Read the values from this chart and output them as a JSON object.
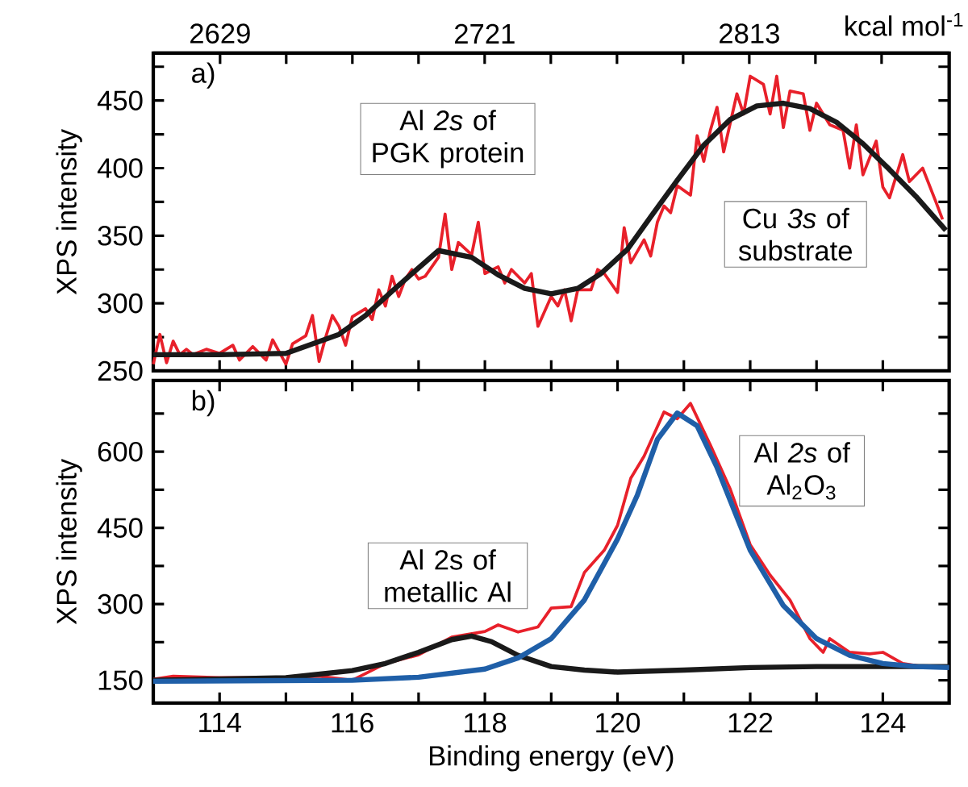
{
  "chart_data": [
    {
      "type": "line",
      "ylabel": "XPS intensity",
      "x2label": "kcal mol$^{-1}$",
      "xlim": [
        113,
        125
      ],
      "ylim": [
        250,
        485
      ],
      "x2lim": [
        2605.78,
        2882.5
      ],
      "xticks": [
        {
          "value": 114,
          "label": null
        },
        {
          "value": 115,
          "label": null
        },
        {
          "value": 116,
          "label": null
        },
        {
          "value": 117,
          "label": null
        },
        {
          "value": 118,
          "label": null
        },
        {
          "value": 119,
          "label": null
        },
        {
          "value": 120,
          "label": null
        },
        {
          "value": 121,
          "label": null
        },
        {
          "value": 122,
          "label": null
        },
        {
          "value": 123,
          "label": null
        },
        {
          "value": 124,
          "label": null
        }
      ],
      "x2ticks": [
        2629,
        {
          "value": 2652,
          "label": null
        },
        {
          "value": 2675,
          "label": null
        },
        {
          "value": 2698,
          "label": null
        },
        2721,
        {
          "value": 2744,
          "label": null
        },
        {
          "value": 2767,
          "label": null
        },
        {
          "value": 2790,
          "label": null
        },
        2813,
        {
          "value": 2836,
          "label": null
        },
        {
          "value": 2859,
          "label": null
        }
      ],
      "yticks": [
        250,
        {
          "value": 275,
          "label": null
        },
        300,
        {
          "value": 325,
          "label": null
        },
        350,
        {
          "value": 375,
          "label": null
        },
        400,
        {
          "value": 425,
          "label": null
        },
        450,
        {
          "value": 475,
          "label": null
        }
      ],
      "tick_labels": "y",
      "marker": "none",
      "line_style": "solid",
      "annotations": [
        "a)",
        "Al *2s* of PGK protein",
        "Cu *3s* of substrate"
      ],
      "series": [
        {
          "color": "#e8202a",
          "x": [
            113.0,
            113.1,
            113.2,
            113.3,
            113.4,
            113.5,
            113.6,
            113.8,
            114.0,
            114.2,
            114.3,
            114.5,
            114.7,
            114.8,
            115.0,
            115.1,
            115.3,
            115.4,
            115.5,
            115.6,
            115.7,
            115.8,
            115.9,
            116.0,
            116.2,
            116.3,
            116.4,
            116.5,
            116.6,
            116.7,
            116.8,
            116.9,
            117.0,
            117.1,
            117.3,
            117.4,
            117.5,
            117.6,
            117.8,
            117.9,
            118.0,
            118.2,
            118.3,
            118.4,
            118.6,
            118.7,
            118.8,
            119.0,
            119.1,
            119.2,
            119.3,
            119.4,
            119.6,
            119.7,
            119.8,
            120.0,
            120.1,
            120.2,
            120.4,
            120.5,
            120.6,
            120.7,
            120.8,
            120.9,
            121.1,
            121.2,
            121.3,
            121.4,
            121.5,
            121.6,
            121.8,
            121.9,
            122.0,
            122.2,
            122.3,
            122.4,
            122.5,
            122.6,
            122.8,
            122.9,
            123.0,
            123.2,
            123.4,
            123.5,
            123.6,
            123.7,
            123.9,
            124.0,
            124.1,
            124.3,
            124.4,
            124.6,
            124.8,
            124.9
          ],
          "values": [
            255,
            277,
            256,
            272,
            262,
            266,
            262,
            266,
            263,
            269,
            258,
            268,
            258,
            273,
            255,
            270,
            276,
            291,
            257,
            275,
            291,
            283,
            269,
            290,
            296,
            288,
            310,
            298,
            320,
            305,
            318,
            325,
            318,
            320,
            334,
            366,
            325,
            345,
            336,
            360,
            322,
            327,
            315,
            325,
            315,
            322,
            283,
            305,
            298,
            310,
            287,
            310,
            310,
            325,
            322,
            308,
            356,
            330,
            347,
            335,
            360,
            372,
            367,
            387,
            380,
            424,
            405,
            428,
            445,
            412,
            455,
            440,
            468,
            462,
            440,
            468,
            430,
            457,
            455,
            428,
            448,
            432,
            428,
            400,
            432,
            395,
            420,
            386,
            378,
            410,
            390,
            400,
            375,
            362
          ]
        },
        {
          "color": "#1a1a1a",
          "x": [
            113.0,
            114.0,
            115.0,
            115.8,
            116.2,
            116.6,
            117.3,
            117.8,
            118.2,
            118.6,
            119.0,
            119.4,
            119.75,
            120.15,
            120.5,
            120.9,
            121.3,
            121.7,
            122.1,
            122.5,
            122.9,
            123.3,
            123.7,
            124.1,
            124.5,
            124.95
          ],
          "values": [
            262,
            262,
            263,
            277,
            291,
            309,
            339,
            334,
            321,
            311,
            307,
            311,
            322,
            340,
            364,
            391,
            417,
            436,
            446,
            448,
            444,
            434,
            418,
            399,
            379,
            354
          ]
        }
      ]
    },
    {
      "type": "line",
      "xlabel": "Binding energy (eV)",
      "ylabel": "XPS intensity",
      "xlim": [
        113,
        125
      ],
      "ylim": [
        105,
        740
      ],
      "xticks": [
        114,
        {
          "value": 115,
          "label": null
        },
        116,
        {
          "value": 117,
          "label": null
        },
        118,
        {
          "value": 119,
          "label": null
        },
        120,
        {
          "value": 121,
          "label": null
        },
        122,
        {
          "value": 123,
          "label": null
        },
        124
      ],
      "yticks": [
        150,
        {
          "value": 225,
          "label": null
        },
        300,
        {
          "value": 375,
          "label": null
        },
        450,
        {
          "value": 525,
          "label": null
        },
        600,
        {
          "value": 675,
          "label": null
        }
      ],
      "marker": "none",
      "line_style": "solid",
      "annotations": [
        "b)",
        "Al *2s* of Al$_{2}$O$_{3}$",
        "Al 2s of metallic Al"
      ],
      "series": [
        {
          "color": "#e8202a",
          "x": [
            113.0,
            113.3,
            114.0,
            115.0,
            115.5,
            116.0,
            116.5,
            117.0,
            117.5,
            118.0,
            118.2,
            118.5,
            118.8,
            119.0,
            119.3,
            119.5,
            119.8,
            120.0,
            120.2,
            120.4,
            120.7,
            120.9,
            121.1,
            121.4,
            121.7,
            122.0,
            122.3,
            122.6,
            122.9,
            123.1,
            123.2,
            123.5,
            123.8,
            124.0,
            124.3,
            124.6,
            125.0
          ],
          "values": [
            152,
            158,
            155,
            155,
            158,
            150,
            183,
            200,
            235,
            246,
            259,
            245,
            255,
            292,
            295,
            362,
            406,
            455,
            548,
            591,
            678,
            665,
            695,
            613,
            526,
            417,
            357,
            308,
            232,
            205,
            232,
            205,
            202,
            205,
            183,
            177,
            177
          ]
        },
        {
          "color": "#1a1a1a",
          "x": [
            113.0,
            115.0,
            116.0,
            116.5,
            117.0,
            117.5,
            117.8,
            118.1,
            118.5,
            119.0,
            119.5,
            120.0,
            121.0,
            122.0,
            123.0,
            124.0,
            125.0
          ],
          "values": [
            150,
            155,
            169,
            183,
            205,
            230,
            237,
            226,
            199,
            177,
            170,
            166,
            170,
            175,
            177,
            177,
            177
          ]
        },
        {
          "color": "#1f5fa8",
          "x": [
            113.0,
            116.0,
            117.0,
            118.0,
            118.5,
            119.0,
            119.5,
            120.0,
            120.3,
            120.6,
            120.9,
            121.2,
            121.5,
            122.0,
            122.5,
            123.0,
            123.5,
            124.0,
            124.5,
            125.0
          ],
          "values": [
            148,
            150,
            156,
            172,
            194,
            232,
            308,
            428,
            515,
            624,
            676,
            651,
            569,
            406,
            297,
            232,
            199,
            183,
            177,
            175
          ]
        }
      ]
    }
  ]
}
